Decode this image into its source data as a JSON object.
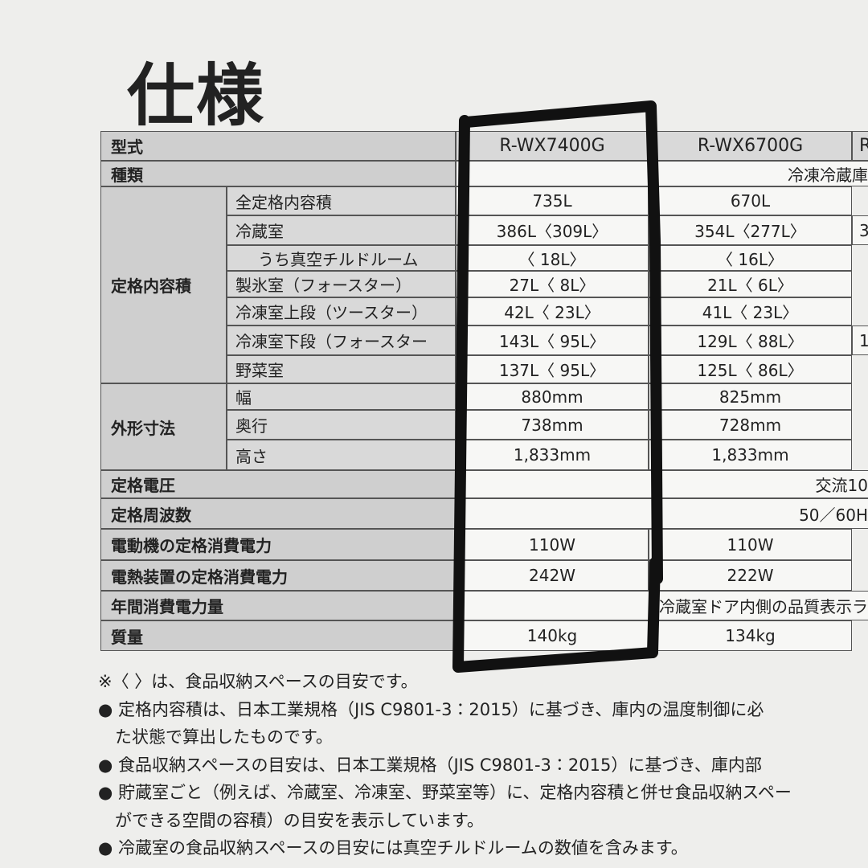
{
  "title": "仕様",
  "table": {
    "sections": [
      {
        "label": "型式",
        "cells": [
          "R-WX7400G",
          "R-WX6700G",
          "R-"
        ]
      },
      {
        "label": "種類",
        "span": "冷凍冷蔵庫"
      },
      {
        "label": "定格内容積",
        "rows": [
          {
            "label": "全定格内容積",
            "cells": [
              "735L",
              "670L"
            ]
          },
          {
            "label": "冷蔵室",
            "cells": [
              "386L〈309L〉",
              "354L〈277L〉",
              "3"
            ]
          },
          {
            "label": "うち真空チルドルーム",
            "cells": [
              "〈 18L〉",
              "〈 16L〉"
            ]
          },
          {
            "label": "製氷室（フォースター）",
            "cells": [
              "27L〈 8L〉",
              "21L〈 6L〉"
            ]
          },
          {
            "label": "冷凍室上段（ツースター）",
            "cells": [
              "42L〈 23L〉",
              "41L〈 23L〉"
            ]
          },
          {
            "label": "冷凍室下段（フォースター",
            "cells": [
              "143L〈 95L〉",
              "129L〈 88L〉",
              "1"
            ]
          },
          {
            "label": "野菜室",
            "cells": [
              "137L〈 95L〉",
              "125L〈 86L〉"
            ]
          }
        ]
      },
      {
        "label": "外形寸法",
        "rows": [
          {
            "label": "幅",
            "cells": [
              "880mm",
              "825mm"
            ]
          },
          {
            "label": "奥行",
            "cells": [
              "738mm",
              "728mm"
            ]
          },
          {
            "label": "高さ",
            "cells": [
              "1,833mm",
              "1,833mm"
            ]
          }
        ]
      },
      {
        "label": "定格電圧",
        "span": "交流10"
      },
      {
        "label": "定格周波数",
        "span": "50／60H"
      },
      {
        "label": "電動機の定格消費電力",
        "cells": [
          "110W",
          "110W"
        ]
      },
      {
        "label": "電熱装置の定格消費電力",
        "cells": [
          "242W",
          "222W"
        ]
      },
      {
        "label": "年間消費電力量",
        "span": "冷蔵室ドア内側の品質表示ラ"
      },
      {
        "label": "質量",
        "cells": [
          "140kg",
          "134kg"
        ]
      }
    ]
  },
  "notes": [
    "※〈 〉は、食品収納スペースの目安です。",
    "● 定格内容積は、日本工業規格（JIS C9801-3：2015）に基づき、庫内の温度制御に必",
    "　た状態で算出したものです。",
    "● 食品収納スペースの目安は、日本工業規格（JIS C9801-3：2015）に基づき、庫内部",
    "● 貯蔵室ごと（例えば、冷蔵室、冷凍室、野菜室等）に、定格内容積と併せ食品収納スペー",
    "　ができる空間の容積）の目安を表示しています。",
    "● 冷蔵室の食品収納スペースの目安には真空チルドルームの数値を含みます。"
  ]
}
